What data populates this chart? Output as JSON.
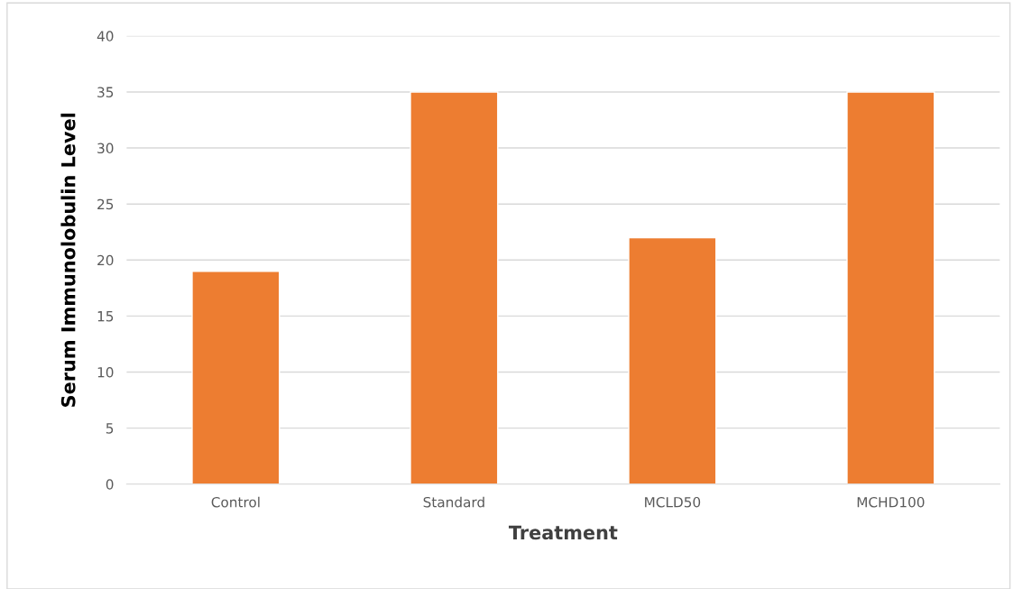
{
  "chart_data": {
    "type": "bar",
    "xlabel": "Treatment",
    "ylabel": "Serum Immunolobulin Level",
    "categories": [
      "Control",
      "Standard",
      "MCLD50",
      "MCHD100"
    ],
    "values": [
      19,
      35,
      22,
      35
    ],
    "color": "#ed7d31",
    "ylim": [
      0,
      40
    ],
    "yticks": [
      0,
      5,
      10,
      15,
      20,
      25,
      30,
      35,
      40
    ],
    "grid": "y",
    "legend": false
  }
}
